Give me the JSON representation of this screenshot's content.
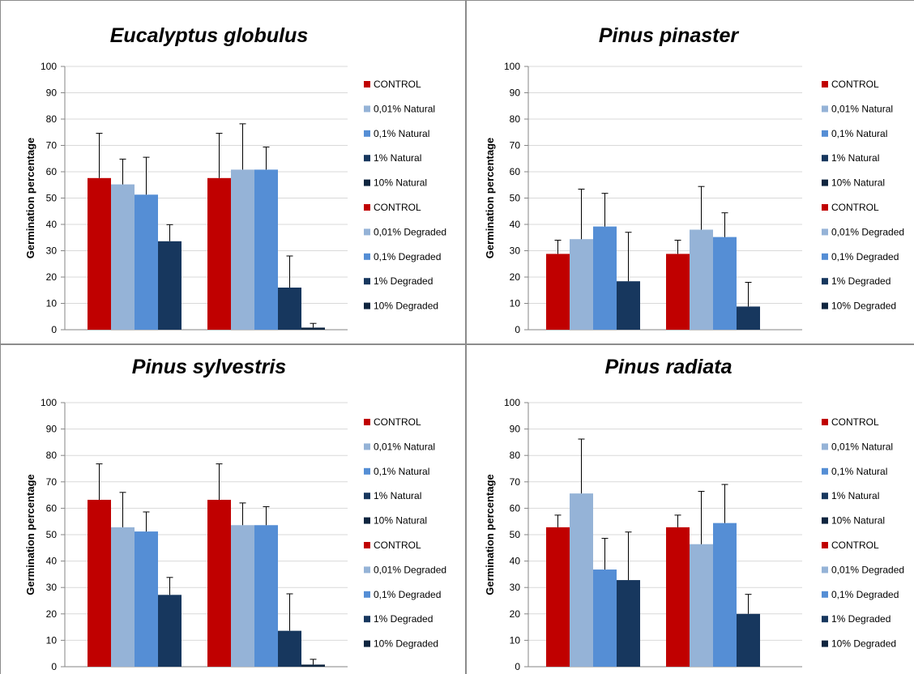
{
  "colors": {
    "control": "#c00000",
    "natural_001": "#95b3d7",
    "natural_01": "#558ed5",
    "natural_1": "#17375e",
    "natural_10": "#0f253f",
    "grid": "#d9d9d9",
    "axis": "#868686",
    "error": "#000000"
  },
  "chart_data": [
    {
      "type": "bar",
      "title": "Eucalyptus globulus",
      "ylabel": "Germination percentage",
      "xlabel": "",
      "ylim": [
        0,
        100
      ],
      "yticks": [
        "0",
        "10",
        "20",
        "30",
        "40",
        "50",
        "60",
        "70",
        "80",
        "90",
        "100"
      ],
      "grid": true,
      "legend_position": "right",
      "groups": 2,
      "legend": [
        "CONTROL",
        "0,01% Natural",
        "0,1%  Natural",
        "1%  Natural",
        "10%  Natural",
        "CONTROL",
        "0,01% Degraded",
        "0,1% Degraded",
        "1% Degraded",
        "10% Degraded"
      ],
      "values": [
        [
          57.6,
          55.2,
          51.3,
          33.6,
          0
        ],
        [
          57.6,
          60.8,
          60.8,
          16.0,
          0.8
        ]
      ],
      "errors": [
        [
          17.0,
          9.6,
          14.2,
          6.3,
          0
        ],
        [
          17.0,
          17.4,
          8.6,
          12.0,
          1.6
        ]
      ]
    },
    {
      "type": "bar",
      "title": "Pinus pinaster",
      "ylabel": "Germination percentage",
      "xlabel": "",
      "ylim": [
        0,
        100
      ],
      "yticks": [
        "0",
        "10",
        "20",
        "30",
        "40",
        "50",
        "60",
        "70",
        "80",
        "90",
        "100"
      ],
      "grid": true,
      "legend_position": "right",
      "groups": 2,
      "legend": [
        "CONTROL",
        "0,01% Natural",
        "0,1%  Natural",
        "1%  Natural",
        "10%  Natural",
        "CONTROL",
        "0,01% Degraded",
        "0,1% Degraded",
        "1% Degraded",
        "10% Degraded"
      ],
      "values": [
        [
          28.8,
          34.4,
          39.2,
          18.4,
          0
        ],
        [
          28.8,
          38.0,
          35.2,
          8.8,
          0
        ]
      ],
      "errors": [
        [
          5.2,
          19.0,
          12.6,
          18.6,
          0
        ],
        [
          5.2,
          16.4,
          9.2,
          9.2,
          0
        ]
      ]
    },
    {
      "type": "bar",
      "title": "Pinus sylvestris",
      "ylabel": "Germination percentage",
      "xlabel": "",
      "ylim": [
        0,
        100
      ],
      "yticks": [
        "0",
        "10",
        "20",
        "30",
        "40",
        "50",
        "60",
        "70",
        "80",
        "90",
        "100"
      ],
      "grid": true,
      "legend_position": "right",
      "groups": 2,
      "legend": [
        "CONTROL",
        "0,01% Natural",
        "0,1%  Natural",
        "1%  Natural",
        "10%  Natural",
        "CONTROL",
        "0,01% Degraded",
        "0,1% Degraded",
        "1% Degraded",
        "10% Degraded"
      ],
      "values": [
        [
          63.2,
          52.8,
          51.2,
          27.2,
          0
        ],
        [
          63.2,
          53.6,
          53.6,
          13.6,
          0.8
        ]
      ],
      "errors": [
        [
          13.6,
          13.2,
          7.4,
          6.6,
          0
        ],
        [
          13.6,
          8.4,
          7.0,
          14.0,
          2.0
        ]
      ]
    },
    {
      "type": "bar",
      "title": "Pinus radiata",
      "ylabel": "Germination percentage",
      "xlabel": "",
      "ylim": [
        0,
        100
      ],
      "yticks": [
        "0",
        "10",
        "20",
        "30",
        "40",
        "50",
        "60",
        "70",
        "80",
        "90",
        "100"
      ],
      "grid": true,
      "legend_position": "right",
      "groups": 2,
      "legend": [
        "CONTROL",
        "0,01% Natural",
        "0,1%  Natural",
        "1%  Natural",
        "10%  Natural",
        "CONTROL",
        "0,01% Degraded",
        "0,1% Degraded",
        "1% Degraded",
        "10% Degraded"
      ],
      "values": [
        [
          52.8,
          65.6,
          36.8,
          32.8,
          0
        ],
        [
          52.8,
          46.4,
          54.4,
          20.0,
          0
        ]
      ],
      "errors": [
        [
          4.6,
          20.6,
          11.8,
          18.2,
          0
        ],
        [
          4.6,
          20.0,
          14.6,
          7.4,
          0
        ]
      ]
    }
  ]
}
